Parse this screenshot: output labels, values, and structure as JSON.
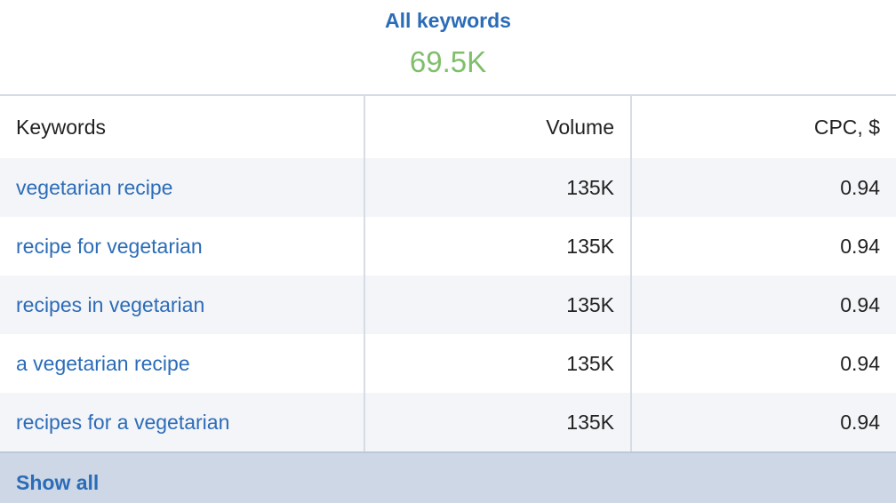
{
  "header": {
    "title": "All keywords",
    "total": "69.5K"
  },
  "table": {
    "columns": [
      "Keywords",
      "Volume",
      "CPC, $"
    ],
    "rows": [
      [
        "vegetarian recipe",
        "135K",
        "0.94"
      ],
      [
        "recipe for vegetarian",
        "135K",
        "0.94"
      ],
      [
        "recipes in vegetarian",
        "135K",
        "0.94"
      ],
      [
        "a vegetarian recipe",
        "135K",
        "0.94"
      ],
      [
        "recipes for a vegetarian",
        "135K",
        "0.94"
      ]
    ]
  },
  "footer": {
    "link": "Show all"
  }
}
